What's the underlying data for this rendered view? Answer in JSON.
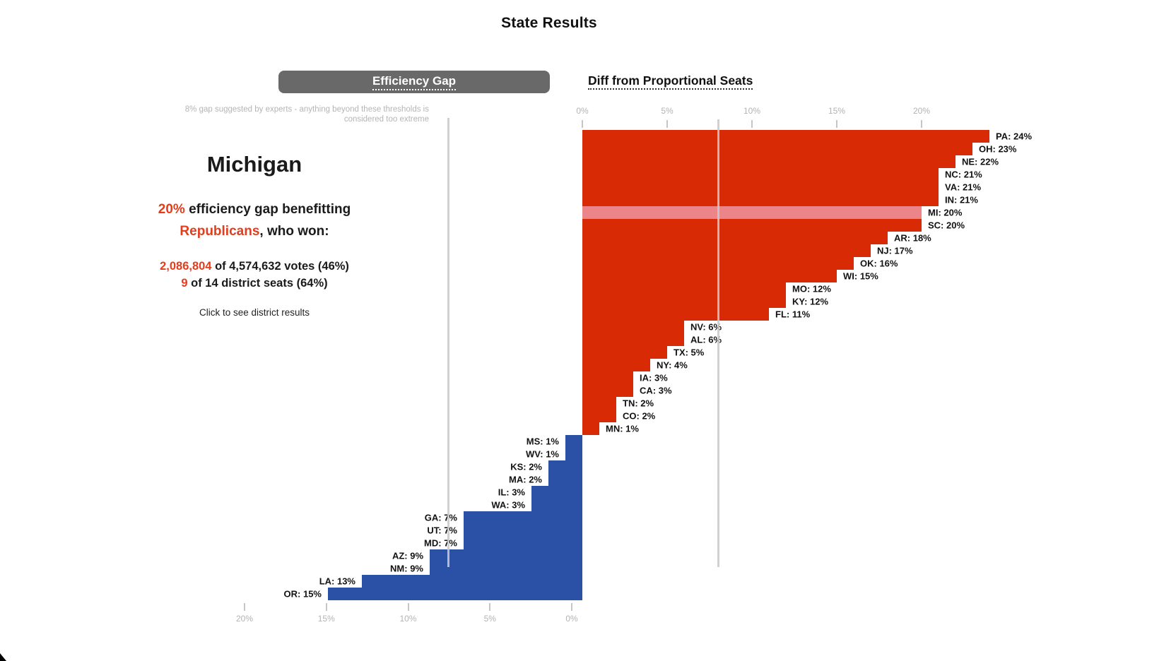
{
  "title": "State Results",
  "tabs": {
    "efficiency_gap": "Efficiency Gap",
    "diff_proportional": "Diff from Proportional Seats"
  },
  "threshold_note": {
    "line1": "8% gap suggested by experts - anything beyond these thresholds is",
    "line2": "considered too extreme"
  },
  "detail_panel": {
    "state": "Michigan",
    "gap_value": "20%",
    "gap_text": " efficiency gap benefitting",
    "party": "Republicans",
    "party_suffix": ", who won:",
    "votes_value": "2,086,804",
    "votes_text": " of 4,574,632 votes (46%)",
    "seats_value": "9",
    "seats_text": " of 14 district seats (64%)",
    "cta": "Click to see district results"
  },
  "colors": {
    "republican_bar": "#d92a06",
    "highlight_bar": "#ec8589",
    "democratic_bar": "#2a51a5",
    "accent_text": "#e23d1d"
  },
  "chart_data": {
    "type": "bar",
    "orientation": "horizontal",
    "unit": "%",
    "title": "State Results",
    "highlighted_state": "MI",
    "threshold_pct": 8,
    "top_axis_ticks": [
      "0%",
      "5%",
      "10%",
      "15%",
      "20%"
    ],
    "bottom_axis_ticks": [
      "20%",
      "15%",
      "10%",
      "5%",
      "0%"
    ],
    "series": [
      {
        "name": "Efficiency gap benefitting Republicans",
        "color": "#d92a06",
        "highlight_color": "#ec8589",
        "points": [
          {
            "state": "PA",
            "value": 24
          },
          {
            "state": "OH",
            "value": 23
          },
          {
            "state": "NE",
            "value": 22
          },
          {
            "state": "NC",
            "value": 21
          },
          {
            "state": "VA",
            "value": 21
          },
          {
            "state": "IN",
            "value": 21
          },
          {
            "state": "MI",
            "value": 20
          },
          {
            "state": "SC",
            "value": 20
          },
          {
            "state": "AR",
            "value": 18
          },
          {
            "state": "NJ",
            "value": 17
          },
          {
            "state": "OK",
            "value": 16
          },
          {
            "state": "WI",
            "value": 15
          },
          {
            "state": "MO",
            "value": 12
          },
          {
            "state": "KY",
            "value": 12
          },
          {
            "state": "FL",
            "value": 11
          },
          {
            "state": "NV",
            "value": 6
          },
          {
            "state": "AL",
            "value": 6
          },
          {
            "state": "TX",
            "value": 5
          },
          {
            "state": "NY",
            "value": 4
          },
          {
            "state": "IA",
            "value": 3
          },
          {
            "state": "CA",
            "value": 3
          },
          {
            "state": "TN",
            "value": 2
          },
          {
            "state": "CO",
            "value": 2
          },
          {
            "state": "MN",
            "value": 1
          }
        ]
      },
      {
        "name": "Efficiency gap benefitting Democrats",
        "color": "#2a51a5",
        "points": [
          {
            "state": "MS",
            "value": 1
          },
          {
            "state": "WV",
            "value": 1
          },
          {
            "state": "KS",
            "value": 2
          },
          {
            "state": "MA",
            "value": 2
          },
          {
            "state": "IL",
            "value": 3
          },
          {
            "state": "WA",
            "value": 3
          },
          {
            "state": "GA",
            "value": 7
          },
          {
            "state": "UT",
            "value": 7
          },
          {
            "state": "MD",
            "value": 7
          },
          {
            "state": "AZ",
            "value": 9
          },
          {
            "state": "NM",
            "value": 9
          },
          {
            "state": "LA",
            "value": 13
          },
          {
            "state": "OR",
            "value": 15
          }
        ]
      }
    ]
  }
}
